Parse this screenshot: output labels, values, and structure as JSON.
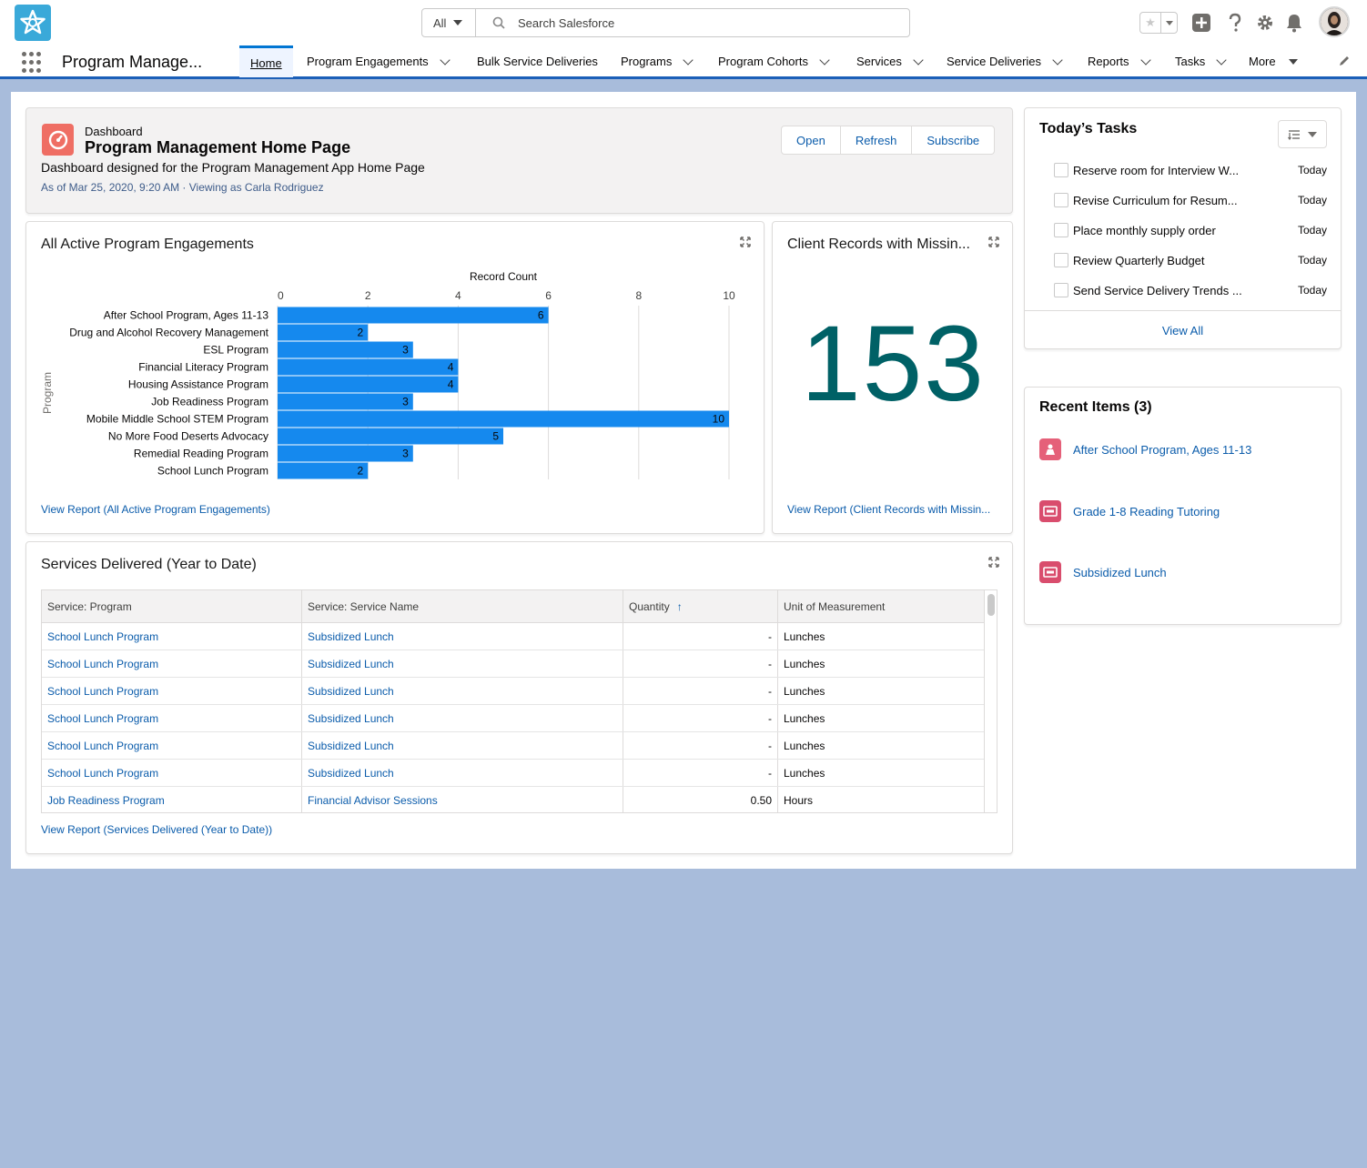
{
  "header": {
    "search_scope": "All",
    "search_placeholder": "Search Salesforce"
  },
  "nav": {
    "app_name": "Program Manage...",
    "items": [
      {
        "label": "Home",
        "active": true,
        "dropdown": false
      },
      {
        "label": "Program Engagements",
        "dropdown": true
      },
      {
        "label": "Bulk Service Deliveries",
        "dropdown": false
      },
      {
        "label": "Programs",
        "dropdown": true
      },
      {
        "label": "Program Cohorts",
        "dropdown": true
      },
      {
        "label": "Services",
        "dropdown": true
      },
      {
        "label": "Service Deliveries",
        "dropdown": true
      },
      {
        "label": "Reports",
        "dropdown": true
      },
      {
        "label": "Tasks",
        "dropdown": true
      },
      {
        "label": "More",
        "dropdown": true
      }
    ]
  },
  "dashboard": {
    "type_label": "Dashboard",
    "title": "Program Management Home Page",
    "description": "Dashboard designed for the Program Management App Home Page",
    "as_of": "As of Mar 25, 2020, 9:20 AM · Viewing as Carla Rodriguez",
    "buttons": {
      "open": "Open",
      "refresh": "Refresh",
      "subscribe": "Subscribe"
    }
  },
  "engagements_card": {
    "title": "All Active Program Engagements",
    "view_report": "View Report (All Active Program Engagements)"
  },
  "chart_data": {
    "type": "bar",
    "orientation": "horizontal",
    "xlabel": "Record Count",
    "ylabel": "Program",
    "xlim": [
      0,
      10
    ],
    "xticks": [
      0,
      2,
      4,
      6,
      8,
      10
    ],
    "bar_color": "#1589ee",
    "categories": [
      "After School Program, Ages 11-13",
      "Drug and Alcohol Recovery Management",
      "ESL Program",
      "Financial Literacy Program",
      "Housing Assistance Program",
      "Job Readiness Program",
      "Mobile Middle School STEM Program",
      "No More Food Deserts Advocacy",
      "Remedial Reading Program",
      "School Lunch Program"
    ],
    "values": [
      6,
      2,
      3,
      4,
      4,
      3,
      10,
      5,
      3,
      2
    ],
    "grid": true
  },
  "metric_card": {
    "title": "Client Records with Missin...",
    "value": "153",
    "view_report": "View Report (Client Records with Missin..."
  },
  "services_card": {
    "title": "Services Delivered (Year to Date)",
    "columns": [
      "Service: Program",
      "Service: Service Name",
      "Quantity",
      "Unit of Measurement"
    ],
    "sort_indicator": "↑",
    "rows": [
      [
        "School Lunch Program",
        "Subsidized Lunch",
        "-",
        "Lunches"
      ],
      [
        "School Lunch Program",
        "Subsidized Lunch",
        "-",
        "Lunches"
      ],
      [
        "School Lunch Program",
        "Subsidized Lunch",
        "-",
        "Lunches"
      ],
      [
        "School Lunch Program",
        "Subsidized Lunch",
        "-",
        "Lunches"
      ],
      [
        "School Lunch Program",
        "Subsidized Lunch",
        "-",
        "Lunches"
      ],
      [
        "School Lunch Program",
        "Subsidized Lunch",
        "-",
        "Lunches"
      ],
      [
        "Job Readiness Program",
        "Financial Advisor Sessions",
        "0.50",
        "Hours"
      ]
    ],
    "view_report": "View Report (Services Delivered (Year to Date))"
  },
  "tasks": {
    "title": "Today’s Tasks",
    "items": [
      {
        "name": "Reserve room for Interview W...",
        "due": "Today"
      },
      {
        "name": "Revise Curriculum for Resum...",
        "due": "Today"
      },
      {
        "name": "Place monthly supply order",
        "due": "Today"
      },
      {
        "name": "Review Quarterly Budget",
        "due": "Today"
      },
      {
        "name": "Send Service Delivery Trends ...",
        "due": "Today"
      }
    ],
    "view_all": "View All"
  },
  "recent": {
    "title": "Recent Items (3)",
    "items": [
      {
        "label": "After School Program, Ages 11-13",
        "icon": "program-icon",
        "color": "#e56079"
      },
      {
        "label": "Grade 1-8 Reading Tutoring",
        "icon": "service-icon",
        "color": "#d94d6d"
      },
      {
        "label": "Subsidized Lunch",
        "icon": "service-icon",
        "color": "#d94d6d"
      }
    ]
  },
  "colors": {
    "brand_blue": "#0176d3",
    "link": "#0b5cab",
    "metric": "#006166",
    "background": "#a8bcdb"
  }
}
